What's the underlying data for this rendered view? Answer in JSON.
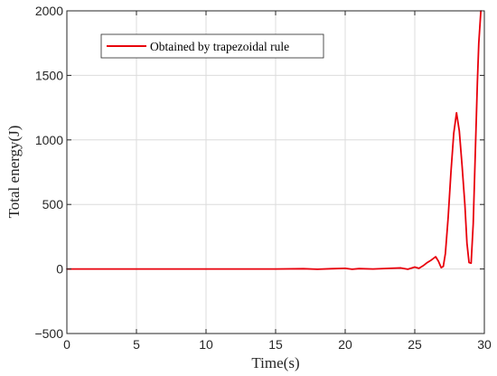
{
  "chart_data": {
    "type": "line",
    "title": "",
    "xlabel": "Time(s)",
    "ylabel": "Total energy(J)",
    "xlim": [
      0,
      30
    ],
    "ylim": [
      -500,
      2000
    ],
    "xticks": [
      0,
      5,
      10,
      15,
      20,
      25,
      30
    ],
    "xtick_labels": [
      "0",
      "5",
      "10",
      "15",
      "20",
      "25",
      "30"
    ],
    "yticks": [
      -500,
      0,
      500,
      1000,
      1500,
      2000
    ],
    "ytick_labels": [
      "−500",
      "0",
      "500",
      "1000",
      "1500",
      "2000"
    ],
    "grid": true,
    "legend_position": "top-left",
    "series": [
      {
        "name": "Obtained by trapezoidal rule",
        "color": "#e8000b",
        "x": [
          0,
          5,
          10,
          15,
          17,
          18,
          19,
          20,
          20.5,
          21,
          22,
          23,
          24,
          24.5,
          25,
          25.3,
          25.6,
          25.9,
          26.2,
          26.5,
          26.7,
          26.9,
          27.05,
          27.2,
          27.4,
          27.6,
          27.8,
          28.0,
          28.2,
          28.4,
          28.6,
          28.75,
          28.9,
          29.05,
          29.2,
          29.35,
          29.5,
          29.6,
          29.75
        ],
        "y": [
          0,
          0,
          0,
          0,
          2,
          -2,
          2,
          5,
          -2,
          3,
          0,
          4,
          8,
          -2,
          15,
          5,
          25,
          50,
          70,
          95,
          60,
          10,
          20,
          120,
          400,
          750,
          1050,
          1210,
          1070,
          800,
          500,
          200,
          50,
          45,
          350,
          900,
          1450,
          1750,
          2000
        ]
      }
    ]
  }
}
